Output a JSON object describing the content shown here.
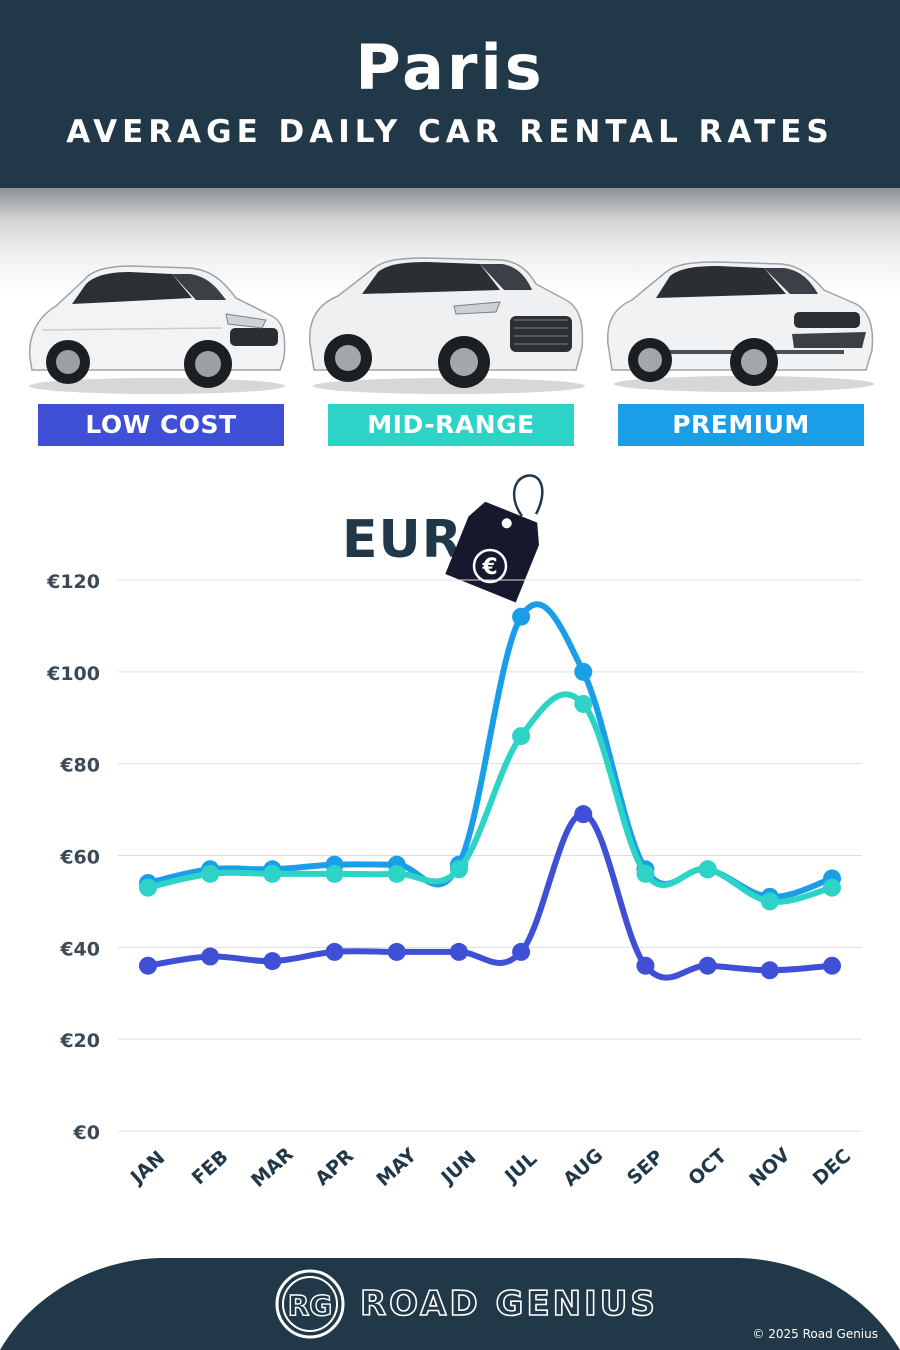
{
  "header": {
    "title": "Paris",
    "subtitle": "AVERAGE DAILY CAR RENTAL RATES"
  },
  "categories": [
    {
      "label": "LOW COST",
      "color": "#3f4fd6"
    },
    {
      "label": "MID-RANGE",
      "color": "#2ed3c8"
    },
    {
      "label": "PREMIUM",
      "color": "#1a9ee8"
    }
  ],
  "currency_tag": {
    "label": "EUR",
    "symbol": "€"
  },
  "chart_data": {
    "type": "line",
    "x": [
      "JAN",
      "FEB",
      "MAR",
      "APR",
      "MAY",
      "JUN",
      "JUL",
      "AUG",
      "SEP",
      "OCT",
      "NOV",
      "DEC"
    ],
    "ylim": [
      0,
      120
    ],
    "yticks": [
      0,
      20,
      40,
      60,
      80,
      100,
      120
    ],
    "ytick_labels": [
      "€0",
      "€20",
      "€40",
      "€60",
      "€80",
      "€100",
      "€120"
    ],
    "grid": true,
    "series": [
      {
        "key": "low",
        "color": "#3f4fd6",
        "values": [
          36,
          38,
          37,
          39,
          39,
          39,
          39,
          69,
          36,
          36,
          35,
          36
        ]
      },
      {
        "key": "mid",
        "color": "#2ed3c8",
        "values": [
          53,
          56,
          56,
          56,
          56,
          57,
          86,
          93,
          56,
          57,
          50,
          53
        ]
      },
      {
        "key": "premium",
        "color": "#1a9ee8",
        "values": [
          54,
          57,
          57,
          58,
          58,
          58,
          112,
          100,
          57,
          57,
          51,
          55
        ]
      }
    ]
  },
  "footer": {
    "logo_letters": "RG",
    "brand": "ROAD GENIUS",
    "copyright": "© 2025 Road Genius"
  }
}
